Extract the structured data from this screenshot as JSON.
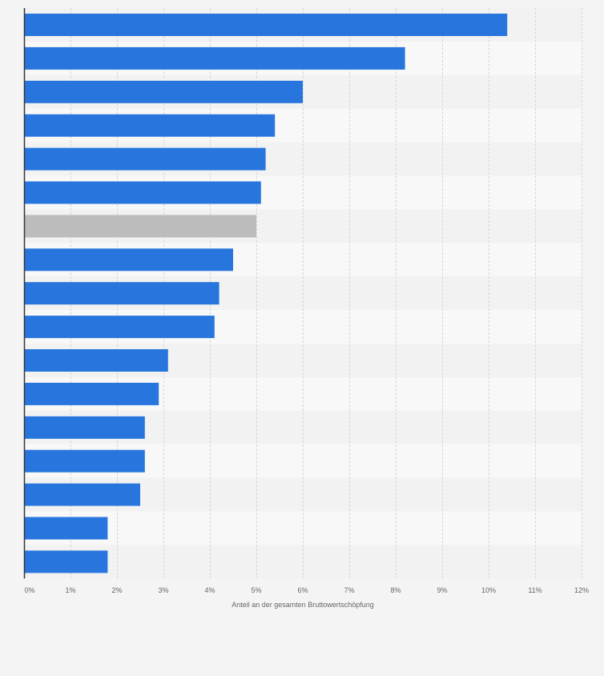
{
  "chart_data": {
    "type": "bar",
    "orientation": "horizontal",
    "xlabel": "Anteil an der gesamten Bruttowertschöpfung",
    "xlim": [
      0,
      12
    ],
    "x_ticks": [
      "0%",
      "1%",
      "2%",
      "3%",
      "4%",
      "5%",
      "6%",
      "7%",
      "8%",
      "9%",
      "10%",
      "11%",
      "12%"
    ],
    "grid": true,
    "values": [
      10.4,
      8.2,
      6.0,
      5.4,
      5.2,
      5.1,
      5.0,
      4.5,
      4.2,
      4.1,
      3.1,
      2.9,
      2.6,
      2.6,
      2.5,
      1.8,
      1.8
    ],
    "highlight_index": 6,
    "colors": {
      "bar": "#2876dd",
      "highlight": "#bcbcbc",
      "grid": "#d6d6d6",
      "axis": "#333333",
      "tick_text": "#666666",
      "row_light": "#f8f8f8",
      "row_dark": "#f2f2f2"
    }
  }
}
